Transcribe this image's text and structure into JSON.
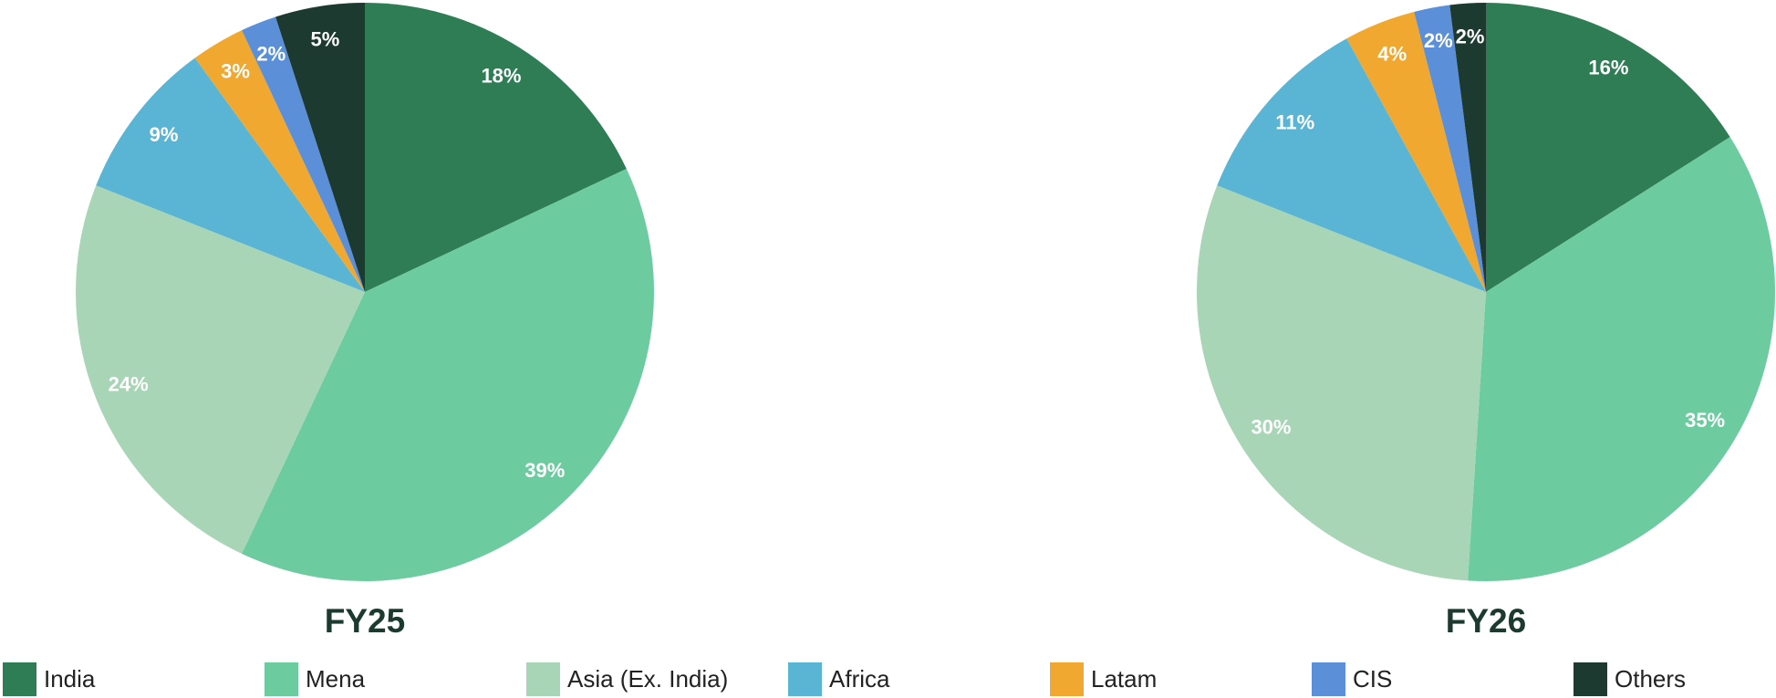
{
  "chart_data": [
    {
      "type": "pie",
      "title": "FY25",
      "categories": [
        "India",
        "Mena",
        "Asia (Ex. India)",
        "Africa",
        "Latam",
        "CIS",
        "Others"
      ],
      "values": [
        18,
        39,
        24,
        9,
        3,
        2,
        5
      ],
      "value_labels": [
        "18%",
        "39%",
        "24%",
        "9%",
        "3%",
        "2%",
        "5%"
      ],
      "colors": [
        "#2e7d55",
        "#6ccca0",
        "#a8d5b5",
        "#5ab5d5",
        "#f0a830",
        "#5b8fd8",
        "#1c3a30"
      ]
    },
    {
      "type": "pie",
      "title": "FY26",
      "categories": [
        "India",
        "Mena",
        "Asia (Ex. India)",
        "Africa",
        "Latam",
        "CIS",
        "Others"
      ],
      "values": [
        16,
        35,
        30,
        11,
        4,
        2,
        2
      ],
      "value_labels": [
        "16%",
        "35%",
        "30%",
        "11%",
        "4%",
        "2%",
        "2%"
      ],
      "colors": [
        "#2e7d55",
        "#6ccca0",
        "#a8d5b5",
        "#5ab5d5",
        "#f0a830",
        "#5b8fd8",
        "#1c3a30"
      ]
    }
  ]
}
